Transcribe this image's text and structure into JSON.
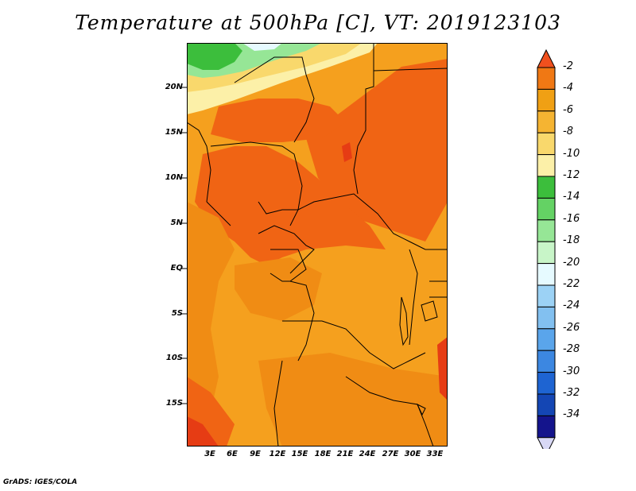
{
  "title": "Temperature at 500hPa [C], VT: 2019123103",
  "credit": "GrADS: IGES/COLA",
  "lat_labels": [
    "20N",
    "15N",
    "10N",
    "5N",
    "EQ",
    "5S",
    "10S",
    "15S"
  ],
  "lon_labels": [
    "3E",
    "6E",
    "9E",
    "12E",
    "15E",
    "18E",
    "21E",
    "24E",
    "27E",
    "30E",
    "33E"
  ],
  "colorbar": {
    "labels": [
      "-2",
      "-4",
      "-6",
      "-8",
      "-10",
      "-12",
      "-14",
      "-16",
      "-18",
      "-20",
      "-22",
      "-24",
      "-26",
      "-28",
      "-30",
      "-32",
      "-34"
    ],
    "colors": [
      "#f0501e",
      "#f07814",
      "#f0a014",
      "#f5b432",
      "#f9d86c",
      "#fcf0a8",
      "#3cbe3c",
      "#64d264",
      "#96e696",
      "#c8f5c8",
      "#e6faff",
      "#9cd2f5",
      "#82c0f0",
      "#5aa5eb",
      "#3c87e1",
      "#1e64d2",
      "#1446b4",
      "#14148c",
      "#d8d8f5"
    ]
  },
  "map_colors": {
    "dark_orange": "#f06414",
    "orange": "#f08c14",
    "light_orange": "#f5a01e",
    "red": "#e63c14",
    "yellow": "#f9d86c",
    "pale_yellow": "#fcf0a8",
    "green": "#3cbe3c",
    "light_green": "#96e696",
    "pale_cyan": "#e6faff"
  }
}
